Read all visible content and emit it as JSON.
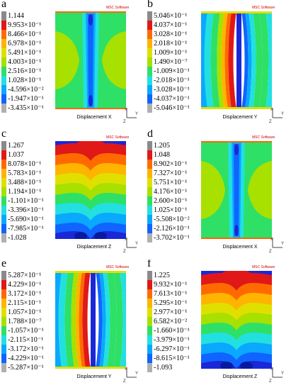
{
  "colors": [
    "#8a8a8a",
    "#e01818",
    "#ff6a00",
    "#ffb400",
    "#e0e000",
    "#a8e000",
    "#2ee066",
    "#22e0e0",
    "#0aa8ff",
    "#1064ff",
    "#1a28d8",
    "#b0b0b0"
  ],
  "panels": [
    {
      "letter": "a",
      "caption": "Displacement X",
      "logo": "MSC Software",
      "type": "x",
      "legend": [
        "1.144",
        "9.953×10⁻¹",
        "8.466×10⁻¹",
        "6.978×10⁻¹",
        "5.491×10⁻¹",
        "4.003×10⁻¹",
        "2.516×10⁻¹",
        "1.028×10⁻¹",
        "-4.596×10⁻²",
        "-1.947×10⁻¹",
        "-3.435×10⁻¹"
      ]
    },
    {
      "letter": "b",
      "caption": "Displacement Y",
      "logo": "MSC Software",
      "type": "y",
      "legend": [
        "5.046×10⁻¹",
        "4.037×10⁻¹",
        "3.028×10⁻¹",
        "2.018×10⁻¹",
        "1.009×10⁻¹",
        "1.490×10⁻⁷",
        "-1.009×10⁻¹",
        "-2.018×10⁻¹",
        "-3.028×10⁻¹",
        "-4.037×10⁻¹",
        "-5.046×10⁻¹"
      ]
    },
    {
      "letter": "c",
      "caption": "Displacement Z",
      "logo": "MSC Software",
      "type": "z",
      "legend": [
        "1.267",
        "1.037",
        "8.078×10⁻¹",
        "5.783×10⁻¹",
        "3.488×10⁻¹",
        "1.194×10⁻¹",
        "-1.101×10⁻¹",
        "-3.396×10⁻¹",
        "-5.690×10⁻¹",
        "-7.985×10⁻¹",
        "-1.028"
      ]
    },
    {
      "letter": "d",
      "caption": "Displacement X",
      "logo": "MSC Software",
      "type": "x",
      "legend": [
        "1.205",
        "1.048",
        "8.902×10⁻¹",
        "7.327×10⁻¹",
        "5.751×10⁻¹",
        "4.176×10⁻¹",
        "2.600×10⁻¹",
        "1.025×10⁻¹",
        "-5.508×10⁻²",
        "-2.126×10⁻¹",
        "-3.702×10⁻¹"
      ]
    },
    {
      "letter": "e",
      "caption": "Displacement Y",
      "logo": "MSC Software",
      "type": "y",
      "legend": [
        "5.287×10⁻¹",
        "4.229×10⁻¹",
        "3.172×10⁻¹",
        "2.115×10⁻¹",
        "1.057×10⁻¹",
        "1.788×10⁻⁷",
        "-1.057×10⁻¹",
        "-2.115×10⁻¹",
        "-3.172×10⁻¹",
        "-4.229×10⁻¹",
        "-5.287×10⁻¹"
      ]
    },
    {
      "letter": "f",
      "caption": "Displacement Z",
      "logo": "MSC Software",
      "type": "z",
      "legend": [
        "1.225",
        "9.932×10⁻¹",
        "7.613×10⁻¹",
        "5.295×10⁻¹",
        "2.977×10⁻¹",
        "6.582×10⁻²",
        "-1.660×10⁻¹",
        "-3.979×10⁻¹",
        "-6.297×10⁻¹",
        "-8.615×10⁻¹",
        "-1.093"
      ]
    }
  ],
  "axis_labels": {
    "y": "Y",
    "z": "Z",
    "x": "X"
  }
}
